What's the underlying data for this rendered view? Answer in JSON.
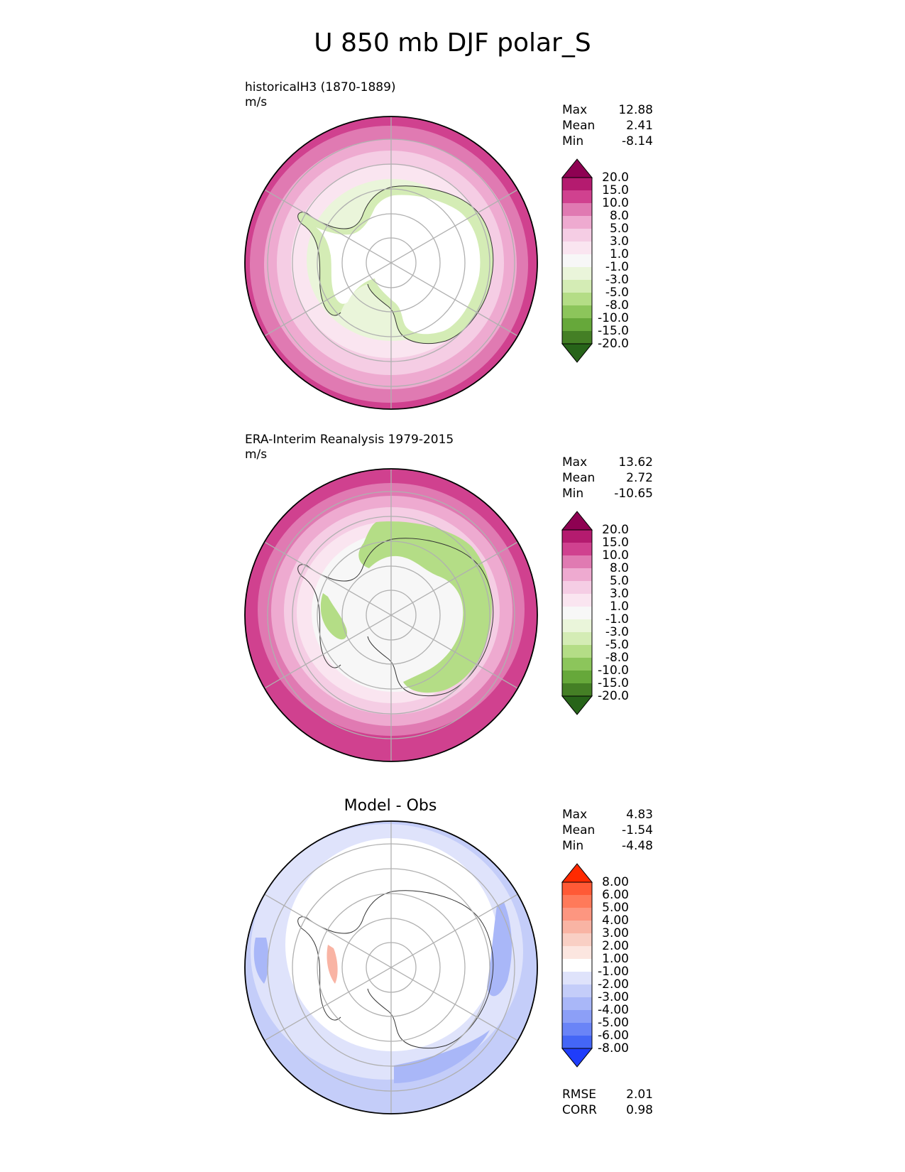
{
  "chart_data": [
    {
      "type": "heatmap",
      "projection": "south polar stereographic",
      "title": "historicalH3 (1870-1889)",
      "units": "m/s",
      "stats": {
        "max": "12.88",
        "mean": "2.41",
        "min": "-8.14"
      },
      "colorbar_ticks": [
        "20.0",
        "15.0",
        "10.0",
        "8.0",
        "5.0",
        "3.0",
        "1.0",
        "-1.0",
        "-3.0",
        "-5.0",
        "-8.0",
        "-10.0",
        "-15.0",
        "-20.0"
      ],
      "colors": [
        "#8e0152",
        "#b41b6f",
        "#d0418f",
        "#e07ab2",
        "#eeaad0",
        "#f5cde4",
        "#fae5f0",
        "#f7f7f7",
        "#eaf5da",
        "#d4ecb5",
        "#b4dd86",
        "#8cc55b",
        "#66a83a",
        "#447f25",
        "#276419"
      ]
    },
    {
      "type": "heatmap",
      "projection": "south polar stereographic",
      "title": "ERA-Interim Reanalysis 1979-2015",
      "units": "m/s",
      "stats": {
        "max": "13.62",
        "mean": "2.72",
        "min": "-10.65"
      },
      "colorbar_ticks": [
        "20.0",
        "15.0",
        "10.0",
        "8.0",
        "5.0",
        "3.0",
        "1.0",
        "-1.0",
        "-3.0",
        "-5.0",
        "-8.0",
        "-10.0",
        "-15.0",
        "-20.0"
      ],
      "colors": [
        "#8e0152",
        "#b41b6f",
        "#d0418f",
        "#e07ab2",
        "#eeaad0",
        "#f5cde4",
        "#fae5f0",
        "#f7f7f7",
        "#eaf5da",
        "#d4ecb5",
        "#b4dd86",
        "#8cc55b",
        "#66a83a",
        "#447f25",
        "#276419"
      ]
    },
    {
      "type": "heatmap",
      "projection": "south polar stereographic",
      "title": "Model - Obs",
      "stats": {
        "max": "4.83",
        "mean": "-1.54",
        "min": "-4.48"
      },
      "colorbar_ticks": [
        "8.00",
        "6.00",
        "5.00",
        "4.00",
        "3.00",
        "2.00",
        "1.00",
        "-1.00",
        "-2.00",
        "-3.00",
        "-4.00",
        "-5.00",
        "-6.00",
        "-8.00"
      ],
      "colors": [
        "#ff2a00",
        "#ff5a36",
        "#ff7a5a",
        "#fd9680",
        "#f9b4a4",
        "#f9cfc4",
        "#fce6e0",
        "#ffffff",
        "#dfe3fb",
        "#c4cdf9",
        "#a9b7f8",
        "#8c9ff7",
        "#6a84f7",
        "#4466f6",
        "#1f3dfb"
      ],
      "rmse": "2.01",
      "corr": "0.98"
    }
  ],
  "figure_title": "U 850 mb DJF polar_S",
  "labels": {
    "max": "Max",
    "mean": "Mean",
    "min": "Min",
    "rmse": "RMSE",
    "corr": "CORR"
  }
}
